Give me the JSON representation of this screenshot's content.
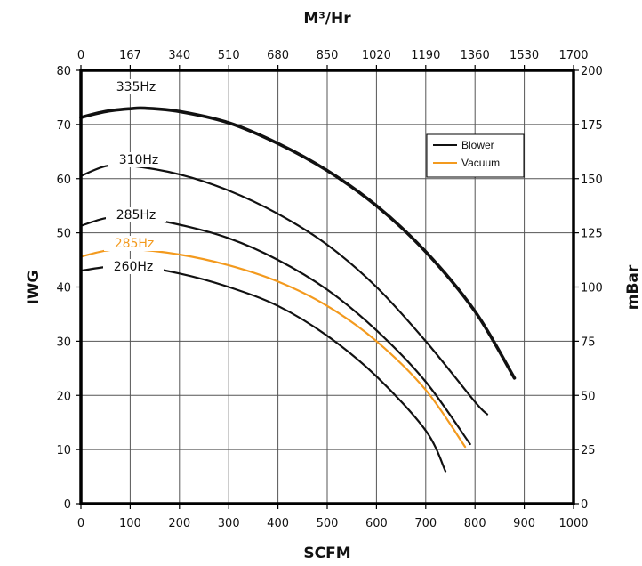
{
  "chart_data": {
    "type": "line",
    "xlabel": "SCFM",
    "x2label": "M³/Hr",
    "ylabel": "IWG",
    "y2label": "mBar",
    "xlim": [
      0,
      1000
    ],
    "ylim": [
      0,
      80
    ],
    "y2lim": [
      0,
      200
    ],
    "x_ticks": [
      "0",
      "100",
      "200",
      "300",
      "400",
      "500",
      "600",
      "700",
      "800",
      "900",
      "1000"
    ],
    "x2_ticks": [
      "0",
      "167",
      "340",
      "510",
      "680",
      "850",
      "1020",
      "1190",
      "1360",
      "1530",
      "1700"
    ],
    "y_ticks": [
      "0",
      "10",
      "20",
      "30",
      "40",
      "50",
      "60",
      "70",
      "80"
    ],
    "y2_ticks": [
      "0",
      "25",
      "50",
      "75",
      "100",
      "125",
      "150",
      "175",
      "200"
    ],
    "grid": true,
    "legend": {
      "position": "top-right",
      "entries": [
        {
          "label": "Blower",
          "color": "#111111"
        },
        {
          "label": "Vacuum",
          "color": "#f39a1e"
        }
      ]
    },
    "series": [
      {
        "label": "335Hz",
        "kind": "blower",
        "color": "#111111",
        "width": 3.6,
        "x": [
          0,
          50,
          100,
          130,
          200,
          300,
          400,
          500,
          600,
          700,
          800,
          880
        ],
        "y": [
          71.3,
          72.4,
          72.9,
          73.0,
          72.4,
          70.3,
          66.5,
          61.5,
          55.0,
          46.5,
          35.5,
          23.2
        ]
      },
      {
        "label": "310Hz",
        "kind": "blower",
        "color": "#111111",
        "width": 2.2,
        "x": [
          0,
          50,
          100,
          200,
          300,
          400,
          500,
          600,
          700,
          800,
          825
        ],
        "y": [
          60.5,
          62.3,
          62.4,
          60.8,
          57.8,
          53.5,
          47.8,
          40.0,
          30.0,
          18.8,
          16.5
        ]
      },
      {
        "label": "285Hz",
        "kind": "blower",
        "color": "#111111",
        "width": 2.2,
        "x": [
          0,
          50,
          100,
          200,
          300,
          400,
          500,
          600,
          700,
          790
        ],
        "y": [
          51.3,
          52.7,
          53.0,
          51.5,
          49.0,
          45.0,
          39.5,
          32.0,
          22.5,
          11.0
        ]
      },
      {
        "label": "285Hz",
        "kind": "vacuum",
        "color": "#f39a1e",
        "width": 2.2,
        "x": [
          0,
          50,
          100,
          200,
          300,
          400,
          500,
          600,
          700,
          780
        ],
        "y": [
          45.6,
          46.7,
          47.0,
          46.0,
          44.0,
          41.0,
          36.5,
          30.0,
          21.0,
          10.5
        ]
      },
      {
        "label": "260Hz",
        "kind": "blower",
        "color": "#111111",
        "width": 2.2,
        "x": [
          0,
          50,
          100,
          200,
          300,
          400,
          500,
          600,
          700,
          740
        ],
        "y": [
          43.0,
          43.7,
          44.0,
          42.5,
          40.0,
          36.5,
          31.0,
          23.5,
          13.5,
          6.0
        ]
      }
    ]
  }
}
